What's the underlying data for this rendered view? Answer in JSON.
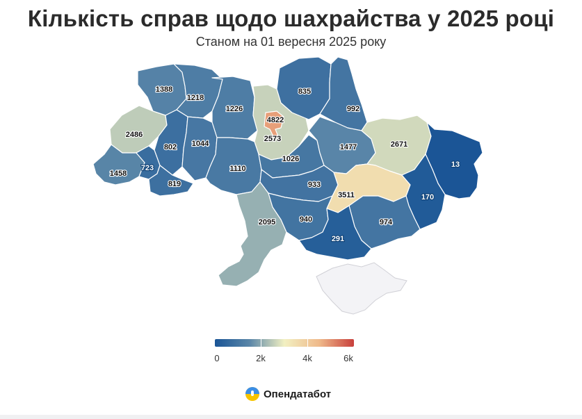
{
  "title": "Кількість справ щодо шахрайства у 2025 році",
  "subtitle": "Станом на 01 вересня 2025 року",
  "colors": {
    "min": "#1a5596",
    "low": "#5a86a8",
    "mid": "#f2f0c2",
    "high": "#efb98a",
    "max": "#c8403c"
  },
  "scale": {
    "min": 0,
    "max": 6000,
    "ticks": [
      "0",
      "2k",
      "4k",
      "6k"
    ]
  },
  "logo": "Опендатабот",
  "regions": [
    {
      "id": "volyn",
      "value": "1388"
    },
    {
      "id": "rivne",
      "value": "1218"
    },
    {
      "id": "zhytomyr",
      "value": "1226"
    },
    {
      "id": "kyiv-oblast",
      "value": "2573"
    },
    {
      "id": "kyiv-city",
      "value": "4822"
    },
    {
      "id": "chernihiv",
      "value": "835"
    },
    {
      "id": "sumy",
      "value": "992"
    },
    {
      "id": "lviv",
      "value": "2486"
    },
    {
      "id": "ternopil",
      "value": "802"
    },
    {
      "id": "khmelnytskyi",
      "value": "1044"
    },
    {
      "id": "vinnytsia",
      "value": "1110"
    },
    {
      "id": "cherkasy",
      "value": "1026"
    },
    {
      "id": "poltava",
      "value": "1477"
    },
    {
      "id": "kharkiv",
      "value": "2671"
    },
    {
      "id": "luhansk",
      "value": "13"
    },
    {
      "id": "zakarpattia",
      "value": "1458"
    },
    {
      "id": "ivano-frankivsk",
      "value": "723"
    },
    {
      "id": "chernivtsi",
      "value": "819"
    },
    {
      "id": "kirovohrad",
      "value": "933"
    },
    {
      "id": "dnipropetrovsk",
      "value": "3511"
    },
    {
      "id": "donetsk",
      "value": "170"
    },
    {
      "id": "odesa",
      "value": "2095"
    },
    {
      "id": "mykolaiv",
      "value": "940"
    },
    {
      "id": "zaporizhzhia",
      "value": "974"
    },
    {
      "id": "kherson",
      "value": "291"
    }
  ]
}
